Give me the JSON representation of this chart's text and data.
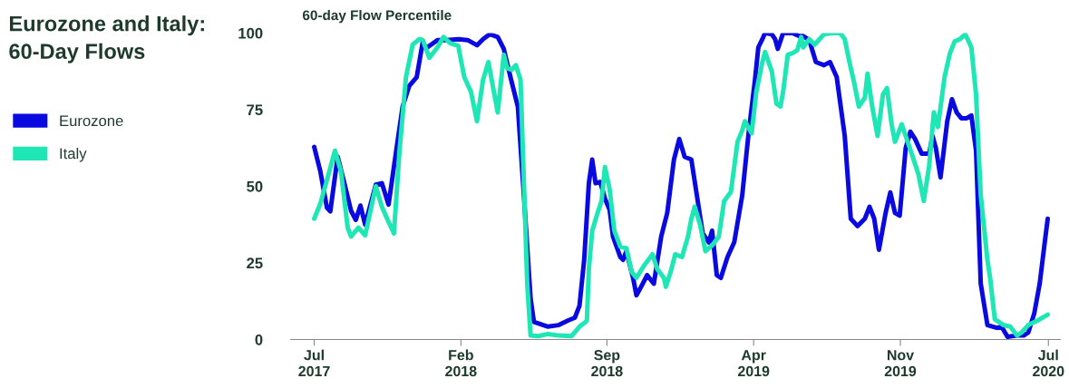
{
  "chart_data": {
    "type": "line",
    "title": "Eurozone and Italy:\n60-Day Flows",
    "ylabel": "60-day Flow Percentile",
    "x": [
      "2017-07-01",
      "2017-07-10",
      "2017-07-20",
      "2017-07-25",
      "2017-08-05",
      "2017-08-15",
      "2017-08-25",
      "2017-09-01",
      "2017-09-08",
      "2017-09-15",
      "2017-10-01",
      "2017-10-10",
      "2017-10-20",
      "2017-11-01",
      "2017-11-10",
      "2017-11-20",
      "2017-12-01",
      "2017-12-10",
      "2017-12-15",
      "2018-01-01",
      "2018-01-15",
      "2018-02-01",
      "2018-02-15",
      "2018-03-01",
      "2018-03-10",
      "2018-03-20",
      "2018-04-01",
      "2018-04-10",
      "2018-04-20",
      "2018-05-01",
      "2018-05-10",
      "2018-05-20",
      "2018-05-25",
      "2018-06-01",
      "2018-06-15",
      "2018-07-01",
      "2018-07-15",
      "2018-07-25",
      "2018-08-01",
      "2018-08-08",
      "2018-08-15",
      "2018-08-20",
      "2018-08-25",
      "2018-09-01",
      "2018-09-08",
      "2018-09-15",
      "2018-09-20",
      "2018-10-01",
      "2018-10-05",
      "2018-10-10",
      "2018-10-20",
      "2018-10-25",
      "2018-11-01",
      "2018-11-10",
      "2018-11-20",
      "2018-12-01",
      "2018-12-10",
      "2018-12-20",
      "2018-12-28",
      "2019-01-05",
      "2019-01-15",
      "2019-02-01",
      "2019-02-10",
      "2019-02-15",
      "2019-02-22",
      "2019-02-28",
      "2019-03-10",
      "2019-03-20",
      "2019-04-01",
      "2019-04-10",
      "2019-04-20",
      "2019-04-25",
      "2019-05-01",
      "2019-05-05",
      "2019-05-15",
      "2019-05-20",
      "2019-05-24",
      "2019-06-01",
      "2019-06-15",
      "2019-06-25",
      "2019-07-01",
      "2019-07-10",
      "2019-07-20",
      "2019-08-01",
      "2019-08-10",
      "2019-08-20",
      "2019-09-01",
      "2019-09-10",
      "2019-09-20",
      "2019-10-01",
      "2019-10-08",
      "2019-10-15",
      "2019-10-22",
      "2019-11-01",
      "2019-11-08",
      "2019-11-15",
      "2019-11-22",
      "2019-12-01",
      "2019-12-08",
      "2019-12-15",
      "2019-12-25",
      "2020-01-05",
      "2020-01-10",
      "2020-01-15",
      "2020-01-22",
      "2020-02-01",
      "2020-02-08",
      "2020-02-15",
      "2020-02-22",
      "2020-03-01",
      "2020-03-08",
      "2020-03-15",
      "2020-03-22",
      "2020-04-01",
      "2020-04-15",
      "2020-04-22",
      "2020-05-01",
      "2020-05-15",
      "2020-05-25",
      "2020-06-01",
      "2020-06-10",
      "2020-06-18",
      "2020-06-25",
      "2020-06-30"
    ],
    "series": [
      {
        "name": "Eurozone",
        "color": "#0a0ae0",
        "values": [
          62.8,
          55,
          43,
          41.8,
          59.6,
          51,
          42,
          39,
          43.7,
          37.5,
          50.5,
          51,
          44,
          62.5,
          76,
          82.8,
          85.6,
          97,
          95,
          97.7,
          97.7,
          98,
          97.7,
          96,
          98,
          99.6,
          98.7,
          94.8,
          85.6,
          76,
          47,
          13.4,
          5.7,
          5.2,
          4.2,
          4.7,
          6.2,
          7.1,
          11,
          26,
          51,
          58.7,
          51,
          51.4,
          46,
          42.3,
          33.6,
          26.9,
          26,
          28.8,
          20.1,
          14.4,
          17.2,
          21,
          18.2,
          33.6,
          41.3,
          58.7,
          65.4,
          59.6,
          58.7,
          34.6,
          31.7,
          35.5,
          21,
          20.1,
          26.9,
          31.7,
          47.1,
          66.4,
          84.7,
          95.3,
          98,
          100,
          99.6,
          98,
          94.8,
          100,
          100,
          99,
          99,
          97.7,
          90.5,
          89.5,
          90.5,
          85.6,
          66.4,
          39.4,
          37,
          39.4,
          43.3,
          39.4,
          29.3,
          41.3,
          48,
          41.3,
          40.4,
          62.5,
          67.8,
          65.4,
          60.6,
          60.6,
          66.4,
          62.5,
          52.9,
          71.2,
          78.4,
          74.1,
          72.2,
          72.2,
          73.1,
          61.6,
          18.2,
          4.7,
          3.8,
          4.2,
          0.9,
          1.3,
          1.3,
          2.3,
          8.6,
          18.2,
          30.7,
          39.4
        ]
      },
      {
        "name": "Italy",
        "color": "#1ee6b4",
        "x": [
          "2017-07-01",
          "2017-07-10",
          "2017-07-20",
          "2017-08-01",
          "2017-08-10",
          "2017-08-20",
          "2017-08-25",
          "2017-09-05",
          "2017-09-15",
          "2017-10-01",
          "2017-10-10",
          "2017-10-20",
          "2017-10-28",
          "2017-11-05",
          "2017-11-15",
          "2017-11-25",
          "2017-12-05",
          "2017-12-10",
          "2017-12-20",
          "2018-01-01",
          "2018-01-10",
          "2018-01-20",
          "2018-02-01",
          "2018-02-10",
          "2018-02-20",
          "2018-03-01",
          "2018-03-10",
          "2018-03-18",
          "2018-04-01",
          "2018-04-10",
          "2018-04-15",
          "2018-04-22",
          "2018-04-28",
          "2018-05-05",
          "2018-05-15",
          "2018-05-20",
          "2018-06-01",
          "2018-06-15",
          "2018-07-01",
          "2018-07-20",
          "2018-08-01",
          "2018-08-10",
          "2018-08-12",
          "2018-08-15",
          "2018-08-20",
          "2018-08-28",
          "2018-09-03",
          "2018-09-08",
          "2018-09-15",
          "2018-09-22",
          "2018-10-01",
          "2018-10-10",
          "2018-10-18",
          "2018-10-25",
          "2018-11-05",
          "2018-11-12",
          "2018-11-18",
          "2018-11-25",
          "2018-12-05",
          "2018-12-08",
          "2018-12-15",
          "2018-12-22",
          "2019-01-01",
          "2019-01-10",
          "2019-01-15",
          "2019-01-20",
          "2019-01-28",
          "2019-02-05",
          "2019-02-15",
          "2019-02-25",
          "2019-03-05",
          "2019-03-15",
          "2019-03-25",
          "2019-04-01",
          "2019-04-05",
          "2019-04-15",
          "2019-04-22",
          "2019-05-01",
          "2019-05-05",
          "2019-05-15",
          "2019-05-22",
          "2019-05-28",
          "2019-06-01",
          "2019-06-08",
          "2019-06-15",
          "2019-06-22",
          "2019-06-28",
          "2019-07-01",
          "2019-07-10",
          "2019-07-18",
          "2019-08-01",
          "2019-08-15",
          "2019-08-25",
          "2019-09-01",
          "2019-09-08",
          "2019-09-15",
          "2019-09-22",
          "2019-10-01",
          "2019-10-05",
          "2019-10-12",
          "2019-10-20",
          "2019-10-28",
          "2019-11-03",
          "2019-11-10",
          "2019-11-15",
          "2019-11-25",
          "2019-12-01",
          "2019-12-10",
          "2019-12-20",
          "2019-12-28",
          "2020-01-05",
          "2020-01-12",
          "2020-01-18",
          "2020-01-28",
          "2020-02-05",
          "2020-02-12",
          "2020-02-20",
          "2020-02-28",
          "2020-03-08",
          "2020-03-15",
          "2020-03-22",
          "2020-04-01",
          "2020-04-05",
          "2020-04-12",
          "2020-04-25",
          "2020-05-05",
          "2020-05-15",
          "2020-05-22",
          "2020-06-01",
          "2020-06-15",
          "2020-06-30"
        ],
        "values": [
          39.4,
          44.2,
          52,
          61.6,
          54.8,
          36.5,
          33.6,
          36.5,
          34,
          50,
          43.3,
          38.4,
          34.6,
          60.6,
          85.6,
          96.2,
          98,
          97.7,
          91.9,
          95.3,
          98.7,
          96.7,
          95.8,
          85.6,
          80.8,
          71.2,
          84.7,
          90.5,
          74.1,
          92.9,
          88.5,
          88,
          89.5,
          84.7,
          18.2,
          1.3,
          1.1,
          1.8,
          1.3,
          1.1,
          4.2,
          5.7,
          6.2,
          23,
          35.5,
          41.3,
          45.2,
          56.3,
          49,
          35.5,
          30.3,
          29.8,
          22,
          20.1,
          24,
          26,
          27.8,
          23,
          20.1,
          17.2,
          22,
          27.8,
          26.9,
          33.6,
          39.4,
          43.3,
          37.5,
          28.8,
          30.7,
          33.6,
          45.2,
          48.1,
          64.5,
          68.3,
          71.2,
          67.3,
          80.8,
          90.5,
          93.8,
          87.6,
          77,
          76,
          80.8,
          92.9,
          93.4,
          94.3,
          98.7,
          95.3,
          98,
          96.2,
          99.6,
          100,
          100,
          98,
          90.5,
          83.8,
          76,
          78.9,
          86.7,
          76,
          66.4,
          79.9,
          82,
          70.2,
          64.5,
          70.2,
          66.4,
          60.6,
          53.9,
          45.2,
          56.7,
          74.1,
          69.3,
          85.6,
          93.4,
          97.2,
          98,
          99.6,
          95.3,
          79.9,
          47.1,
          25.9,
          20.1,
          6.6,
          4.7,
          4.2,
          1.3,
          2.3,
          4.7,
          6.2,
          8.1
        ]
      }
    ],
    "xlim": [
      "2017-05-27",
      "2020-07-19"
    ],
    "xticks": [
      {
        "value": "2017-07-01",
        "label": "Jul\n2017"
      },
      {
        "value": "2018-02-05",
        "label": "Feb\n2018"
      },
      {
        "value": "2018-09-11",
        "label": "Sep\n2018"
      },
      {
        "value": "2019-04-18",
        "label": "Apr\n2019"
      },
      {
        "value": "2019-11-23",
        "label": "Nov\n2019"
      },
      {
        "value": "2020-07-01",
        "label": "Jul\n2020"
      }
    ],
    "ylim": [
      0,
      100
    ],
    "yticks": [
      0,
      25,
      50,
      75,
      100
    ],
    "grid": false,
    "legend": "left",
    "marker": "none",
    "line_style": "solid"
  }
}
